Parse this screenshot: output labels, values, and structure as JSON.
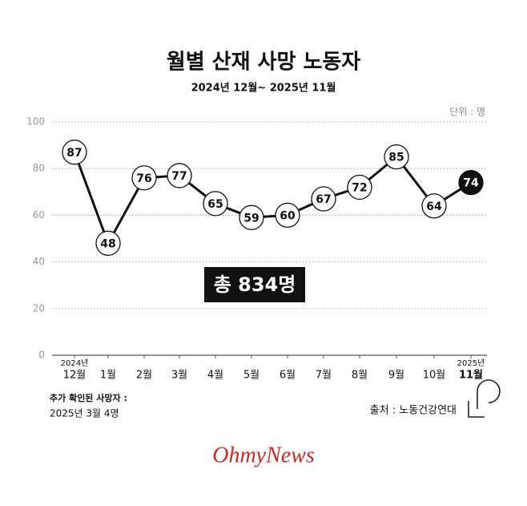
{
  "chart_data": {
    "type": "line",
    "title": "월별 산재 사망 노동자",
    "subtitle": "2024년 12월~ 2025년 11월",
    "unit_label": "단위 : 명",
    "categories": [
      "12월",
      "1월",
      "2월",
      "3월",
      "4월",
      "5월",
      "6월",
      "7월",
      "8월",
      "9월",
      "10월",
      "11월"
    ],
    "x_year_labels": [
      "2024년",
      null,
      null,
      null,
      null,
      null,
      null,
      null,
      null,
      null,
      null,
      "2025년"
    ],
    "series": [
      {
        "name": "사망 노동자",
        "color": "#111111",
        "values": [
          87,
          48,
          76,
          77,
          65,
          59,
          60,
          67,
          72,
          85,
          64,
          74
        ]
      }
    ],
    "ylim": [
      0,
      100
    ],
    "yticks": [
      0,
      20,
      40,
      60,
      80,
      100
    ],
    "grid": true,
    "annotation": "총 834명",
    "footnote": [
      "추가 확인된 사망자 :",
      "2025년 3월 4명"
    ],
    "source": "출처 : 노동건강연대",
    "brand": "OhmyNews"
  }
}
